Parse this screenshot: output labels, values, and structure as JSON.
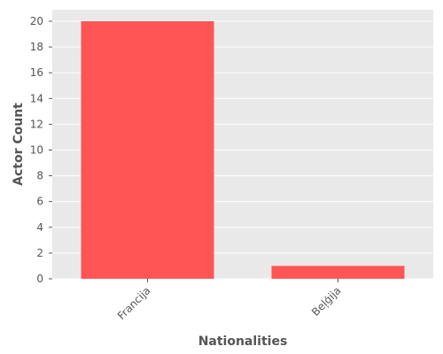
{
  "chart_data": {
    "type": "bar",
    "categories": [
      "Francija",
      "Beļģija"
    ],
    "values": [
      20,
      1
    ],
    "xlabel": "Nationalities",
    "ylabel": "Actor Count",
    "ylim": [
      0,
      21
    ],
    "yticks": [
      0,
      2,
      4,
      6,
      8,
      10,
      12,
      14,
      16,
      18,
      20
    ],
    "grid": true,
    "colors": {
      "bar": "#ff5555",
      "panel_background": "#e9e9e9",
      "grid": "#ffffff",
      "text": "#555555"
    }
  }
}
